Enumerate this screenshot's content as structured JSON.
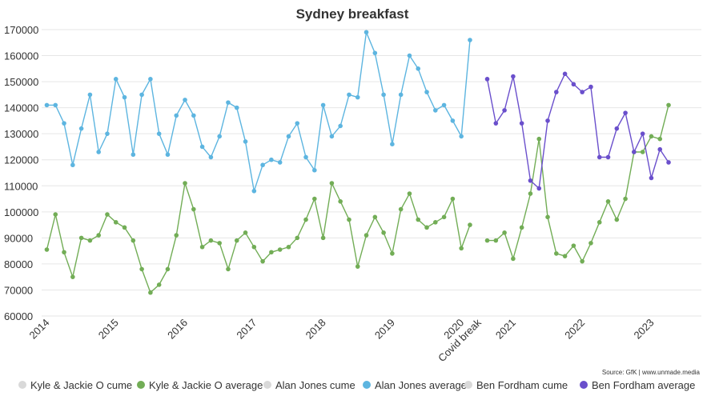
{
  "chart_data": {
    "type": "line",
    "title": "Sydney breakfast",
    "source": "Source: GfK | www.unmade.media",
    "ylim": [
      60000,
      170000
    ],
    "yticks": [
      60000,
      70000,
      80000,
      90000,
      100000,
      110000,
      120000,
      130000,
      140000,
      150000,
      160000,
      170000
    ],
    "ytick_labels": [
      "60000",
      "70000",
      "80000",
      "90000",
      "100000",
      "110000",
      "120000",
      "130000",
      "140000",
      "150000",
      "160000",
      "170000"
    ],
    "x_index_range": [
      -0.6,
      75.8
    ],
    "x_ticks": [
      {
        "label": "2014",
        "index": 0
      },
      {
        "label": "2015",
        "index": 8
      },
      {
        "label": "2016",
        "index": 16
      },
      {
        "label": "2017",
        "index": 24
      },
      {
        "label": "2018",
        "index": 32
      },
      {
        "label": "2019",
        "index": 40
      },
      {
        "label": "2020",
        "index": 48
      },
      {
        "label": "Covid break",
        "index": 50
      },
      {
        "label": "2021",
        "index": 54
      },
      {
        "label": "2022",
        "index": 62
      },
      {
        "label": "2023",
        "index": 70
      }
    ],
    "legend": [
      {
        "name": "Kyle & Jackie O cume",
        "color": "#d9d9d9"
      },
      {
        "name": "Kyle & Jackie O average",
        "color": "#72ad56"
      },
      {
        "name": "Alan Jones cume",
        "color": "#d9d9d9"
      },
      {
        "name": "Alan Jones average",
        "color": "#5db5e0"
      },
      {
        "name": "Ben Fordham cume",
        "color": "#d9d9d9"
      },
      {
        "name": "Ben Fordham average",
        "color": "#6a4fcc"
      }
    ],
    "series": [
      {
        "name": "Alan Jones average",
        "color": "#5db5e0",
        "start_index": 0,
        "values": [
          141000,
          141000,
          134000,
          118000,
          132000,
          145000,
          123000,
          130000,
          151000,
          144000,
          122000,
          145000,
          151000,
          130000,
          122000,
          137000,
          143000,
          137000,
          125000,
          121000,
          129000,
          142000,
          140000,
          127000,
          108000,
          118000,
          120000,
          119000,
          129000,
          134000,
          121000,
          116000,
          141000,
          129000,
          133000,
          145000,
          144000,
          169000,
          161000,
          145000,
          126000,
          145000,
          160000,
          155000,
          146000,
          139000,
          141000,
          135000,
          129000,
          166000
        ]
      },
      {
        "name": "Kyle & Jackie O average",
        "color": "#72ad56",
        "start_index": 0,
        "values": [
          85500,
          99000,
          84500,
          75000,
          90000,
          89000,
          91000,
          99000,
          96000,
          94000,
          89000,
          78000,
          69000,
          72000,
          78000,
          91000,
          111000,
          101000,
          86500,
          89000,
          88000,
          78000,
          89000,
          92000,
          86500,
          81000,
          84500,
          85500,
          86500,
          90000,
          97000,
          105000,
          90000,
          111000,
          104000,
          97000,
          79000,
          91000,
          98000,
          92000,
          84000,
          101000,
          107000,
          97000,
          94000,
          96000,
          98000,
          105000,
          86000,
          95000,
          null,
          89000,
          89000,
          92000,
          82000,
          94000,
          107000,
          128000,
          98000,
          84000,
          83000,
          87000,
          81000,
          88000,
          96000,
          104000,
          97000,
          105000,
          123000,
          123000,
          129000,
          128000,
          141000
        ]
      },
      {
        "name": "Ben Fordham average",
        "color": "#6a4fcc",
        "start_index": 51,
        "values": [
          151000,
          134000,
          139000,
          152000,
          134000,
          112000,
          109000,
          135000,
          146000,
          153000,
          149000,
          146000,
          148000,
          121000,
          121000,
          132000,
          138000,
          123000,
          130000,
          113000,
          124000,
          119000
        ]
      }
    ]
  }
}
